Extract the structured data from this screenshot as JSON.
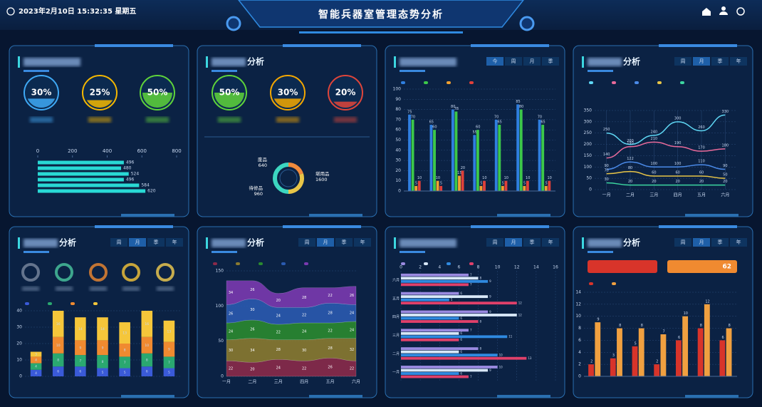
{
  "header": {
    "datetime": "2023年2月10日 15:32:35 星期五",
    "title": "智能兵器室管理态势分析"
  },
  "panels": [
    {
      "gauges": {
        "values": [
          30,
          25,
          50
        ],
        "value_labels": [
          "30%",
          "25%",
          "50%"
        ],
        "colors": [
          "#3fa9f5",
          "#f5b800",
          "#5fd43a"
        ]
      },
      "chart": {
        "type": "hbar",
        "xlim": [
          0,
          800
        ],
        "xticks": [
          0,
          200,
          400,
          600,
          800
        ],
        "values": [
          496,
          480,
          524,
          496,
          584,
          620
        ],
        "color": "#29d9d5"
      }
    },
    {
      "title": "分析",
      "gauges": {
        "values": [
          50,
          30,
          20
        ],
        "value_labels": [
          "50%",
          "30%",
          "20%"
        ],
        "colors": [
          "#5fd43a",
          "#f5a800",
          "#e0453a"
        ]
      },
      "chart": {
        "type": "donut",
        "categories": [
          "废品",
          "待修品",
          "堪用品"
        ],
        "values": [
          640,
          960,
          1600
        ],
        "colors": [
          "#f08a3c",
          "#e8c547",
          "#3cd6c0"
        ]
      }
    },
    {
      "tabs": [
        "今",
        "周",
        "月",
        "季"
      ],
      "active_tab": 0,
      "chart": {
        "type": "groupbar",
        "categories": [
          null,
          null,
          null,
          null,
          null,
          null,
          null
        ],
        "ylim": [
          0,
          100
        ],
        "yticks": [
          0,
          10,
          20,
          30,
          40,
          50,
          60,
          70,
          80,
          90,
          100
        ],
        "grid": true,
        "series": [
          {
            "color": "#2f7fe0",
            "values": [
              75,
              65,
              80,
              55,
              70,
              85,
              70
            ]
          },
          {
            "color": "#3cc84a",
            "values": [
              70,
              60,
              78,
              60,
              65,
              80,
              65
            ]
          },
          {
            "color": "#f0a030",
            "values": [
              5,
              10,
              15,
              5,
              5,
              5,
              5
            ]
          },
          {
            "color": "#e0403a",
            "values": [
              10,
              5,
              20,
              10,
              10,
              10,
              10
            ]
          }
        ]
      }
    },
    {
      "title": "分析",
      "tabs": [
        "周",
        "月",
        "季",
        "年"
      ],
      "active_tab": 1,
      "chart": {
        "type": "line",
        "categories": [
          "一月",
          "二月",
          "三月",
          "四月",
          "五月",
          "六月"
        ],
        "ylim": [
          0,
          350
        ],
        "yticks": [
          0,
          50,
          100,
          150,
          200,
          250,
          300,
          350
        ],
        "grid": true,
        "series": [
          {
            "color": "#5fd8f5",
            "values": [
              250,
              200,
              240,
              300,
              260,
              330
            ]
          },
          {
            "color": "#e86a9a",
            "values": [
              140,
              190,
              210,
              190,
              170,
              180
            ]
          },
          {
            "color": "#4a8ae8",
            "values": [
              90,
              122,
              100,
              100,
              110,
              90
            ]
          },
          {
            "color": "#e8c547",
            "values": [
              70,
              80,
              60,
              60,
              60,
              50
            ]
          },
          {
            "color": "#3cd6a0",
            "values": [
              30,
              20,
              20,
              20,
              20,
              20
            ]
          }
        ]
      }
    },
    {
      "title": "分析",
      "tabs": [
        "周",
        "月",
        "季",
        "年"
      ],
      "active_tab": 1,
      "chart": {
        "type": "stacked",
        "categories": [
          null,
          null,
          null,
          null,
          null,
          null,
          null
        ],
        "ylim": [
          0,
          40
        ],
        "yticks": [
          0,
          10,
          20,
          30,
          40
        ],
        "grid": true,
        "series": [
          {
            "color": "#3a5ad8",
            "values": [
              4,
              6,
              6,
              5,
              5,
              6,
              5
            ]
          },
          {
            "color": "#2aa870",
            "values": [
              4,
              8,
              7,
              8,
              7,
              8,
              7
            ]
          },
          {
            "color": "#f08a30",
            "values": [
              4,
              10,
              9,
              9,
              8,
              10,
              9
            ]
          },
          {
            "color": "#f5c63a",
            "values": [
              3,
              16,
              14,
              14,
              13,
              16,
              13
            ]
          }
        ]
      }
    },
    {
      "title": "分析",
      "tabs": [
        "周",
        "月",
        "季",
        "年"
      ],
      "active_tab": 1,
      "chart": {
        "type": "area",
        "categories": [
          "一月",
          "二月",
          "三月",
          "四月",
          "五月",
          "六月"
        ],
        "ylim": [
          0,
          150
        ],
        "yticks": [
          0,
          50,
          100,
          150
        ],
        "grid": true,
        "series": [
          {
            "color": "#8a2a4a",
            "values": [
              22,
              20,
              24,
              22,
              26,
              22
            ]
          },
          {
            "color": "#8a7a30",
            "values": [
              30,
              34,
              28,
              30,
              28,
              32
            ]
          },
          {
            "color": "#2a8a30",
            "values": [
              24,
              26,
              22,
              24,
              22,
              24
            ]
          },
          {
            "color": "#2a5ab0",
            "values": [
              26,
              30,
              24,
              22,
              28,
              24
            ]
          },
          {
            "color": "#7a3ab0",
            "values": [
              34,
              26,
              20,
              28,
              22,
              26
            ]
          }
        ]
      }
    },
    {
      "tabs": [
        "周",
        "月",
        "季",
        "年"
      ],
      "active_tab": 1,
      "chart": {
        "type": "hgroup",
        "categories": [
          "一月",
          "二月",
          "三月",
          "四月",
          "五月",
          "六月"
        ],
        "xlim": [
          0,
          16
        ],
        "xticks": [
          0,
          2,
          4,
          6,
          8,
          10,
          12,
          14,
          16
        ],
        "grid": true,
        "series": [
          {
            "color": "#9a8ae0",
            "values": [
              10,
              8,
              7,
              9,
              6,
              7
            ]
          },
          {
            "color": "#d8e8f8",
            "values": [
              9,
              6,
              6,
              12,
              9,
              8
            ]
          },
          {
            "color": "#2f8ae0",
            "values": [
              6,
              10,
              11,
              6,
              5,
              9
            ]
          },
          {
            "color": "#e0406a",
            "values": [
              7,
              13,
              6,
              8,
              12,
              7
            ]
          }
        ]
      }
    },
    {
      "title": "分析",
      "tabs": [
        "周",
        "月",
        "季",
        "年"
      ],
      "active_tab": 1,
      "badge": 62,
      "chart": {
        "type": "groupbar",
        "categories": [
          null,
          null,
          null,
          null,
          null,
          null,
          null
        ],
        "ylim": [
          0,
          14
        ],
        "yticks": [
          0,
          2,
          4,
          6,
          8,
          10,
          12,
          14
        ],
        "grid": true,
        "series": [
          {
            "color": "#d8342a",
            "values": [
              2,
              3,
              5,
              2,
              6,
              8,
              6
            ]
          },
          {
            "color": "#f0a040",
            "values": [
              9,
              8,
              8,
              7,
              10,
              12,
              8
            ]
          }
        ]
      }
    }
  ]
}
